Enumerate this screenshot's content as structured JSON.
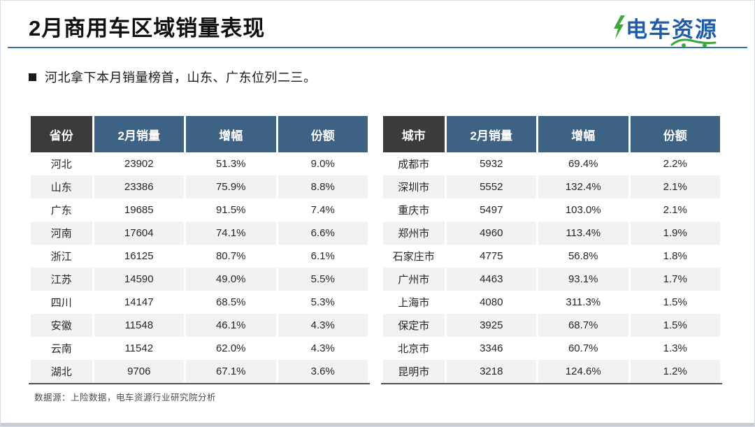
{
  "page": {
    "title": "2月商用车区域销量表现",
    "bullet": "河北拿下本月销量榜首，山东、广东位列二三。",
    "footer": "数据源：上险数据，电车资源行业研究院分析",
    "logo_text": "电车资源",
    "colors": {
      "accent_rule_blue": "#2e74b5",
      "table_header_blue": "#3e6284",
      "table_header_dark": "#3b3b3b",
      "row_alt_gray": "#f2f2f2",
      "logo_blue": "#1f5ca9",
      "logo_green": "#3da83a",
      "table_bottom_border": "#44515f",
      "bottom_strip": "#c6cdd9"
    }
  },
  "tables": [
    {
      "name": "province-sales",
      "headers": [
        "省份",
        "2月销量",
        "增幅",
        "份额"
      ],
      "rows": [
        [
          "河北",
          "23902",
          "51.3%",
          "9.0%"
        ],
        [
          "山东",
          "23386",
          "75.9%",
          "8.8%"
        ],
        [
          "广东",
          "19685",
          "91.5%",
          "7.4%"
        ],
        [
          "河南",
          "17604",
          "74.1%",
          "6.6%"
        ],
        [
          "浙江",
          "16125",
          "80.7%",
          "6.1%"
        ],
        [
          "江苏",
          "14590",
          "49.0%",
          "5.5%"
        ],
        [
          "四川",
          "14147",
          "68.5%",
          "5.3%"
        ],
        [
          "安徽",
          "11548",
          "46.1%",
          "4.3%"
        ],
        [
          "云南",
          "11542",
          "62.0%",
          "4.3%"
        ],
        [
          "湖北",
          "9706",
          "67.1%",
          "3.6%"
        ]
      ]
    },
    {
      "name": "city-sales",
      "headers": [
        "城市",
        "2月销量",
        "增幅",
        "份额"
      ],
      "rows": [
        [
          "成都市",
          "5932",
          "69.4%",
          "2.2%"
        ],
        [
          "深圳市",
          "5552",
          "132.4%",
          "2.1%"
        ],
        [
          "重庆市",
          "5497",
          "103.0%",
          "2.1%"
        ],
        [
          "郑州市",
          "4960",
          "113.4%",
          "1.9%"
        ],
        [
          "石家庄市",
          "4775",
          "56.8%",
          "1.8%"
        ],
        [
          "广州市",
          "4463",
          "93.1%",
          "1.7%"
        ],
        [
          "上海市",
          "4080",
          "311.3%",
          "1.5%"
        ],
        [
          "保定市",
          "3925",
          "68.7%",
          "1.5%"
        ],
        [
          "北京市",
          "3346",
          "60.7%",
          "1.3%"
        ],
        [
          "昆明市",
          "3218",
          "124.6%",
          "1.2%"
        ]
      ]
    }
  ]
}
